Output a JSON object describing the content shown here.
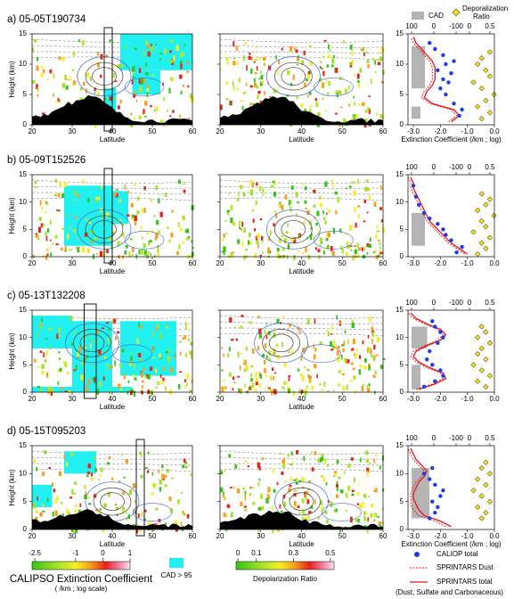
{
  "legend_top": {
    "cad": "CAD",
    "depol": [
      "Deporalization",
      "Ratio"
    ]
  },
  "curtain_axes": {
    "xlabel": "Latitude",
    "ylabel": "Height (km)",
    "xlim": [
      20,
      60
    ],
    "xticks": [
      20,
      30,
      40,
      50,
      60
    ],
    "ylim": [
      0,
      15
    ],
    "yticks": [
      0,
      5,
      10,
      15
    ]
  },
  "profile_axes": {
    "xlabel": "Extinction Coefficient (/km ; log)",
    "xlim": [
      -3.2,
      0
    ],
    "xticks": [
      {
        "value": -3,
        "label": "-3.0"
      },
      {
        "value": -2,
        "label": "-2.0"
      },
      {
        "value": -1,
        "label": "-1.0"
      },
      {
        "value": 0,
        "label": "0.0"
      }
    ],
    "ylim": [
      0,
      15
    ],
    "yticks": [
      0,
      5,
      10,
      15
    ],
    "cad_lim": [
      116,
      -272
    ],
    "cad_ticks": [
      100,
      0,
      -100
    ],
    "depol_lim": [
      -1.5,
      0.61
    ],
    "depol_ticks": [
      0,
      0.5
    ]
  },
  "chart_data": [
    {
      "type": "profile",
      "title": "a) 05-05T190734",
      "heights": [
        0.5,
        1.5,
        2.5,
        3.5,
        4.5,
        5.5,
        6.5,
        7.5,
        8.5,
        9.5,
        10.5,
        11.5,
        12.5,
        13.5,
        14.5
      ],
      "series": [
        {
          "color": "#e8141c",
          "dash": false,
          "values": [
            -1.6,
            -1.3,
            -1.5,
            -2.3,
            -2.6,
            -2.5,
            -2.3,
            -2.2,
            -2.2,
            -2.2,
            -2.3,
            -2.5,
            -2.7,
            -2.9,
            -3.0
          ]
        },
        {
          "color": "#e8141c",
          "dash": true,
          "values": [
            -1.7,
            -1.4,
            -1.6,
            -2.4,
            -2.7,
            -2.6,
            -2.4,
            -2.3,
            -2.3,
            -2.3,
            -2.4,
            -2.6,
            -2.8,
            -3.0,
            -3.1
          ]
        }
      ],
      "caliop": {
        "color": "#1c3ce6",
        "x": [
          -1.3,
          -1.2,
          -1.5,
          -1.8,
          -2.0,
          -1.7,
          -1.9,
          -1.6,
          -2.1,
          -1.8,
          -1.5,
          -1.9,
          -2.2,
          -2.4
        ],
        "y": [
          1.5,
          2.5,
          3.5,
          5,
          6,
          7,
          7.5,
          8.5,
          9,
          10,
          10.5,
          11.5,
          12.5,
          13.5
        ]
      },
      "depol": {
        "color": "#f5e11a",
        "x": [
          0.3,
          0.5,
          0.2,
          0.4,
          0.6,
          0.3,
          0.1,
          0.5,
          0.4,
          0.2,
          0.3,
          0.5
        ],
        "y": [
          1,
          2,
          3,
          4,
          5,
          6,
          7,
          8,
          9,
          10,
          11,
          12
        ]
      },
      "cad": {
        "color": "#b4b4b4",
        "bottom": [
          1,
          6
        ],
        "top": [
          3,
          13
        ],
        "values": [
          60,
          40
        ]
      }
    },
    {
      "type": "profile",
      "title": "b) 05-09T152526",
      "heights": [
        0.5,
        1.5,
        2.5,
        3.5,
        4.5,
        5.5,
        6.5,
        7.5,
        8.5,
        9.5,
        10.5,
        11.5,
        12.5,
        13.5,
        14.5
      ],
      "series": [
        {
          "color": "#e8141c",
          "dash": false,
          "values": [
            -1.0,
            -1.3,
            -1.6,
            -1.8,
            -2.0,
            -2.2,
            -2.4,
            -2.5,
            -2.6,
            -2.7,
            -2.8,
            -2.9,
            -3.0,
            -3.0,
            -3.1
          ]
        },
        {
          "color": "#e8141c",
          "dash": true,
          "values": [
            -1.1,
            -1.4,
            -1.7,
            -1.9,
            -2.1,
            -2.3,
            -2.5,
            -2.6,
            -2.7,
            -2.8,
            -2.9,
            -3.0,
            -3.1,
            -3.1,
            -3.2
          ]
        }
      ],
      "caliop": {
        "color": "#1c3ce6",
        "x": [
          -1.4,
          -1.2,
          -1.6,
          -1.8,
          -1.9,
          -2.1,
          -2.4,
          -2.6,
          -2.8,
          -2.9,
          -3.0
        ],
        "y": [
          0.8,
          1.8,
          3,
          4,
          5,
          6,
          7,
          8,
          9.5,
          11,
          13
        ]
      },
      "depol": {
        "color": "#f5e11a",
        "x": [
          0.2,
          0.4,
          0.3,
          0.5,
          0.1,
          0.4,
          0.3,
          0.6,
          0.2,
          0.4,
          0.5,
          0.3
        ],
        "y": [
          0.5,
          1.5,
          2.5,
          3.5,
          4.5,
          5.5,
          6.5,
          7.5,
          8.5,
          9.5,
          10.5,
          11.5
        ]
      },
      "cad": {
        "color": "#b4b4b4",
        "bottom": [
          2
        ],
        "top": [
          8
        ],
        "values": [
          40
        ]
      }
    },
    {
      "type": "profile",
      "title": "c) 05-13T132208",
      "heights": [
        0.5,
        1.5,
        2.5,
        3.5,
        4.5,
        5.5,
        6.5,
        7.5,
        8.5,
        9.5,
        10.5,
        11.5,
        12.5,
        13.5,
        14.5
      ],
      "series": [
        {
          "color": "#e8141c",
          "dash": false,
          "values": [
            -2.8,
            -2.2,
            -1.8,
            -1.9,
            -2.4,
            -2.8,
            -3.0,
            -2.9,
            -2.5,
            -2.0,
            -1.8,
            -2.0,
            -2.5,
            -2.9,
            -3.1
          ]
        },
        {
          "color": "#e8141c",
          "dash": true,
          "values": [
            -2.9,
            -2.3,
            -1.9,
            -2.0,
            -2.5,
            -2.9,
            -3.1,
            -3.0,
            -2.6,
            -2.1,
            -1.9,
            -2.1,
            -2.6,
            -3.0,
            -3.2
          ]
        }
      ],
      "caliop": {
        "color": "#1c3ce6",
        "x": [
          -2.6,
          -2.2,
          -1.9,
          -2.0,
          -2.3,
          -2.5,
          -2.4,
          -2.1,
          -1.9,
          -2.0,
          -2.2,
          -2.3
        ],
        "y": [
          1,
          2,
          3,
          4,
          5,
          6,
          7.5,
          9,
          10,
          11,
          12,
          13
        ]
      },
      "depol": {
        "color": "#f5e11a",
        "x": [
          0.4,
          0.2,
          0.5,
          0.3,
          0.1,
          0.4,
          0.2,
          0.3,
          0.5,
          0.2,
          0.4,
          0.3
        ],
        "y": [
          1,
          2,
          3,
          4,
          5,
          6,
          7,
          8,
          9,
          10,
          11,
          12
        ]
      },
      "cad": {
        "color": "#b4b4b4",
        "bottom": [
          0.5,
          8
        ],
        "top": [
          5,
          12
        ],
        "values": [
          60,
          30
        ]
      }
    },
    {
      "type": "profile",
      "title": "d) 05-15T095203",
      "heights": [
        0.5,
        1.5,
        2.5,
        3.5,
        4.5,
        5.5,
        6.5,
        7.5,
        8.5,
        9.5,
        10.5,
        11.5,
        12.5,
        13.5,
        14.5
      ],
      "series": [
        {
          "color": "#e8141c",
          "dash": false,
          "values": [
            -1.6,
            -2.0,
            -2.6,
            -2.8,
            -2.9,
            -3.0,
            -3.0,
            -2.9,
            -2.8,
            -2.6,
            -2.5,
            -2.7,
            -2.9,
            -3.0,
            -3.1
          ]
        },
        {
          "color": "#e8141c",
          "dash": true,
          "values": [
            -1.8,
            -2.2,
            -2.8,
            -3.0,
            -3.1,
            -3.1,
            -3.1,
            -3.0,
            -2.9,
            -2.7,
            -2.6,
            -2.8,
            -3.0,
            -3.1,
            -3.2
          ]
        }
      ],
      "caliop": {
        "color": "#1c3ce6",
        "x": [
          -2.4,
          -2.2,
          -2.1,
          -2.3,
          -2.0,
          -1.9,
          -2.2,
          -2.4,
          -2.6,
          -2.3
        ],
        "y": [
          2,
          3,
          4,
          5,
          6,
          7,
          8,
          9,
          10,
          11
        ]
      },
      "depol": {
        "color": "#f5e11a",
        "x": [
          0.3,
          0.4,
          0.2,
          0.5,
          0.3,
          0.1,
          0.4,
          0.2,
          0.5,
          0.3,
          0.4
        ],
        "y": [
          2,
          3,
          4,
          5,
          6,
          7,
          8,
          9,
          10,
          11,
          12
        ]
      },
      "cad": {
        "color": "#b4b4b4",
        "bottom": [
          2
        ],
        "top": [
          11
        ],
        "values": [
          20
        ]
      }
    }
  ],
  "colorbars": {
    "extinction": {
      "label": [
        "CALIPSO Extinction Coefficient",
        "( /km ; log scale)"
      ],
      "lim": [
        -2.6,
        1
      ],
      "ticks": [
        -2.5,
        -1,
        0,
        1
      ]
    },
    "cad": {
      "label": "CAD > 95",
      "color": "#22f0f0"
    },
    "depol": {
      "label": "Depolarization Ratio",
      "lim": [
        -0.01,
        0.52
      ],
      "ticks": [
        0,
        0.1,
        0.3,
        0.5
      ]
    }
  },
  "legend": {
    "caliop": "CALIOP total",
    "dust": "SPRINTARS Dust",
    "total": [
      "SPRINTARS total",
      "(Dust, Sulfate and Carbonaceous)"
    ]
  }
}
